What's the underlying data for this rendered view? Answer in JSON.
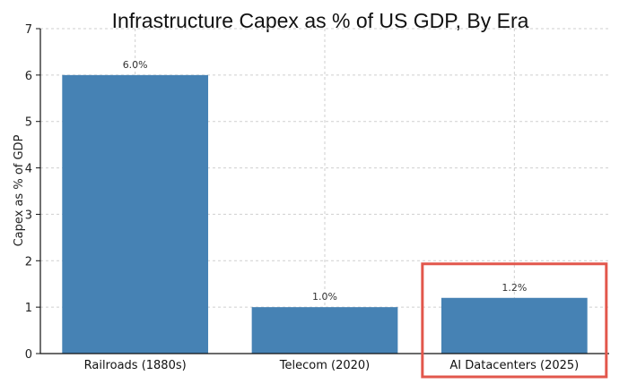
{
  "chart_data": {
    "type": "bar",
    "title": "Infrastructure Capex as % of US GDP, By Era",
    "xlabel": "",
    "ylabel": "Capex as % of GDP",
    "categories": [
      "Railroads (1880s)",
      "Telecom (2020)",
      "AI Datacenters (2025)"
    ],
    "values": [
      6.0,
      1.0,
      1.2
    ],
    "data_labels": [
      "6.0%",
      "1.0%",
      "1.2%"
    ],
    "ylim": [
      0,
      7
    ],
    "yticks": [
      0,
      1,
      2,
      3,
      4,
      5,
      6,
      7
    ],
    "grid": true,
    "highlighted_category": "AI Datacenters (2025)",
    "colors": {
      "bar": "#4682b4",
      "highlight_box": "#e2574c"
    }
  }
}
